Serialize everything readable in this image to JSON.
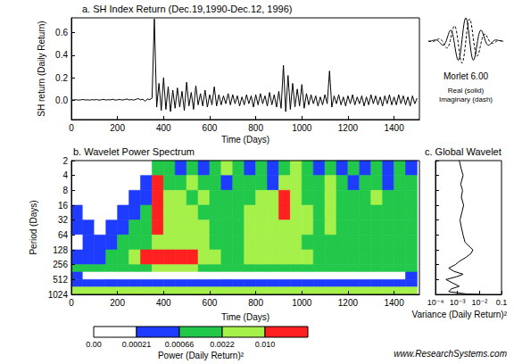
{
  "chart_data": [
    {
      "type": "line",
      "title": "a. SH Index Return (Dec.19,1990-Dec.12, 1996)",
      "x_label": "Time (Days)",
      "y_label": "SH return (Daily Return)",
      "x": [
        0,
        10,
        20,
        30,
        40,
        50,
        60,
        70,
        80,
        90,
        100,
        110,
        120,
        130,
        140,
        150,
        160,
        170,
        180,
        190,
        200,
        210,
        220,
        230,
        240,
        250,
        260,
        270,
        280,
        290,
        300,
        310,
        320,
        330,
        340,
        350,
        360,
        370,
        380,
        390,
        400,
        410,
        420,
        430,
        440,
        450,
        460,
        470,
        480,
        490,
        500,
        510,
        520,
        530,
        540,
        550,
        560,
        570,
        580,
        590,
        600,
        610,
        620,
        630,
        640,
        650,
        660,
        670,
        680,
        690,
        700,
        710,
        720,
        730,
        740,
        750,
        760,
        770,
        780,
        790,
        800,
        810,
        820,
        830,
        840,
        850,
        860,
        870,
        880,
        890,
        900,
        910,
        920,
        930,
        940,
        950,
        960,
        970,
        980,
        990,
        1000,
        1010,
        1020,
        1030,
        1040,
        1050,
        1060,
        1070,
        1080,
        1090,
        1100,
        1110,
        1120,
        1130,
        1140,
        1150,
        1160,
        1170,
        1180,
        1190,
        1200,
        1210,
        1220,
        1230,
        1240,
        1250,
        1260,
        1270,
        1280,
        1290,
        1300,
        1310,
        1320,
        1330,
        1340,
        1350,
        1360,
        1370,
        1380,
        1390,
        1400,
        1410,
        1420,
        1430,
        1440,
        1450,
        1460,
        1470,
        1480,
        1490,
        1500
      ],
      "values": [
        0.005,
        0.003,
        0.006,
        0.002,
        0.004,
        0.008,
        0.003,
        0.005,
        0.002,
        0.006,
        0.004,
        0.007,
        0.002,
        0.005,
        0.009,
        0.003,
        0.006,
        0.004,
        0.01,
        0.002,
        0.005,
        0.008,
        0.003,
        0.006,
        0.012,
        0.004,
        0.007,
        0.002,
        0.009,
        0.015,
        0.005,
        0.01,
        -0.008,
        0.012,
        0.006,
        0.02,
        0.72,
        -0.06,
        0.15,
        -0.09,
        0.2,
        -0.08,
        0.12,
        -0.1,
        0.09,
        -0.07,
        0.11,
        -0.06,
        0.08,
        -0.09,
        0.16,
        -0.05,
        0.07,
        -0.08,
        0.13,
        -0.04,
        0.06,
        -0.05,
        0.09,
        -0.06,
        0.05,
        -0.04,
        0.12,
        -0.05,
        0.05,
        -0.04,
        0.04,
        -0.03,
        0.06,
        -0.04,
        0.05,
        -0.03,
        0.04,
        -0.05,
        0.03,
        -0.04,
        0.05,
        -0.03,
        0.04,
        -0.06,
        0.05,
        -0.04,
        0.06,
        -0.03,
        0.04,
        -0.05,
        0.07,
        -0.04,
        0.05,
        -0.06,
        0.08,
        -0.07,
        0.31,
        -0.1,
        0.22,
        -0.08,
        0.15,
        -0.06,
        0.1,
        -0.05,
        0.14,
        -0.07,
        0.06,
        -0.04,
        0.05,
        -0.03,
        0.04,
        -0.05,
        0.03,
        -0.04,
        0.05,
        -0.03,
        0.26,
        -0.06,
        0.04,
        -0.03,
        0.05,
        -0.04,
        0.03,
        -0.05,
        0.04,
        -0.03,
        0.05,
        -0.04,
        0.03,
        -0.03,
        0.04,
        -0.05,
        0.03,
        -0.04,
        0.05,
        -0.03,
        0.04,
        -0.04,
        0.03,
        -0.05,
        0.04,
        -0.03,
        0.05,
        -0.04,
        0.03,
        -0.04,
        0.05,
        -0.03,
        0.04,
        -0.04,
        0.03,
        -0.05,
        0.04,
        -0.03,
        0.02
      ],
      "color": "#000000",
      "xlim": [
        0,
        1510
      ],
      "xticks": [
        0,
        200,
        400,
        600,
        800,
        1000,
        1200,
        1400
      ],
      "ylim": [
        -0.17,
        0.73
      ],
      "yticks": [
        {
          "value": 0,
          "label": "0.0"
        },
        {
          "value": 0.2,
          "label": "0.2"
        },
        {
          "value": 0.4,
          "label": "0.4"
        },
        {
          "value": 0.6,
          "label": "0.6"
        }
      ],
      "grid": false
    },
    {
      "type": "heatmap",
      "title": "b. Wavelet Power Spectrum",
      "x_label": "Time (Days)",
      "y_label": "Period (Days)",
      "x_edges": [
        0,
        50,
        100,
        150,
        200,
        250,
        300,
        350,
        400,
        450,
        500,
        550,
        600,
        650,
        700,
        750,
        800,
        850,
        900,
        950,
        1000,
        1050,
        1100,
        1150,
        1200,
        1250,
        1300,
        1350,
        1400,
        1450,
        1500
      ],
      "period_edges": [
        2,
        4,
        8,
        16,
        32,
        64,
        128,
        256,
        362,
        512,
        724,
        1024
      ],
      "power": [
        [
          0.0001,
          0.0001,
          0.0001,
          0.0001,
          0.0001,
          0.0001,
          0.0001,
          0.0012,
          0.0012,
          0.0004,
          0.0012,
          0.0004,
          0.0012,
          0.005,
          0.0012,
          0.0004,
          0.0012,
          0.0004,
          0.0012,
          0.005,
          0.0012,
          0.0004,
          0.0012,
          0.0004,
          0.0012,
          0.0004,
          0.0012,
          0.0004,
          0.0012,
          0.0004
        ],
        [
          0.0001,
          0.0001,
          0.0001,
          0.0001,
          0.0001,
          0.0001,
          0.0004,
          0.02,
          0.0012,
          0.0012,
          0.005,
          0.0012,
          0.0012,
          0.0004,
          0.0012,
          0.0012,
          0.0012,
          0.0004,
          0.005,
          0.005,
          0.0012,
          0.0012,
          0.005,
          0.0012,
          0.0004,
          0.0012,
          0.0012,
          0.0004,
          0.0012,
          0.0012
        ],
        [
          0.0001,
          0.0001,
          0.0001,
          0.0001,
          0.0001,
          0.0004,
          0.0004,
          0.02,
          0.005,
          0.005,
          0.0012,
          0.005,
          0.0012,
          0.0012,
          0.0012,
          0.0012,
          0.005,
          0.005,
          0.02,
          0.005,
          0.0012,
          0.0012,
          0.005,
          0.0012,
          0.0012,
          0.0012,
          0.005,
          0.0012,
          0.0012,
          0.0012
        ],
        [
          0.0004,
          0.0001,
          0.0001,
          0.0001,
          0.0004,
          0.0004,
          0.0012,
          0.02,
          0.005,
          0.005,
          0.005,
          0.0012,
          0.0012,
          0.0012,
          0.0012,
          0.005,
          0.005,
          0.005,
          0.02,
          0.005,
          0.005,
          0.0012,
          0.005,
          0.0012,
          0.0012,
          0.0012,
          0.0012,
          0.0012,
          0.0012,
          0.0012
        ],
        [
          0.0004,
          0.0004,
          0.0001,
          0.0004,
          0.0004,
          0.0012,
          0.0012,
          0.02,
          0.005,
          0.005,
          0.005,
          0.005,
          0.0012,
          0.0012,
          0.0012,
          0.005,
          0.005,
          0.005,
          0.005,
          0.005,
          0.005,
          0.0012,
          0.005,
          0.0012,
          0.0012,
          0.0012,
          0.0012,
          0.0012,
          0.0012,
          0.0012
        ],
        [
          0.0001,
          0.0004,
          0.0004,
          0.0004,
          0.0012,
          0.0012,
          0.0012,
          0.005,
          0.005,
          0.005,
          0.005,
          0.005,
          0.0012,
          0.0012,
          0.0012,
          0.005,
          0.005,
          0.005,
          0.005,
          0.005,
          0.0012,
          0.0012,
          0.0012,
          0.0012,
          0.0012,
          0.0012,
          0.0012,
          0.0012,
          0.0012,
          0.0012
        ],
        [
          0.0004,
          0.0004,
          0.0004,
          0.0012,
          0.0012,
          0.005,
          0.02,
          0.02,
          0.02,
          0.02,
          0.02,
          0.005,
          0.005,
          0.0012,
          0.0012,
          0.005,
          0.005,
          0.005,
          0.005,
          0.005,
          0.005,
          0.0012,
          0.0012,
          0.0012,
          0.0012,
          0.0012,
          0.0012,
          0.0012,
          0.0012,
          0.0012
        ],
        [
          0.0012,
          0.0012,
          0.0012,
          0.0012,
          0.0012,
          0.0012,
          0.0012,
          0.005,
          0.005,
          0.005,
          0.005,
          0.0012,
          0.0012,
          0.0012,
          0.0012,
          0.0012,
          0.0012,
          0.0012,
          0.0012,
          0.0012,
          0.0012,
          0.0012,
          0.0012,
          0.0012,
          0.0012,
          0.0012,
          0.0012,
          0.0012,
          0.0012,
          0.0012
        ],
        [
          0.0004,
          0.0001,
          0.0001,
          0.0001,
          0.0001,
          0.0001,
          0.0001,
          0.0001,
          0.0001,
          0.0001,
          0.0001,
          0.0001,
          0.0001,
          0.0001,
          0.0001,
          0.0001,
          0.0001,
          0.0001,
          0.0001,
          0.0001,
          0.0001,
          0.0001,
          0.0001,
          0.0001,
          0.0001,
          0.0001,
          0.0001,
          0.0001,
          0.0001,
          0.0004
        ],
        [
          0.0004,
          0.0004,
          0.0004,
          0.0004,
          0.0004,
          0.0004,
          0.0004,
          0.0004,
          0.0004,
          0.0004,
          0.0004,
          0.0004,
          0.0004,
          0.0004,
          0.0004,
          0.0004,
          0.0004,
          0.0004,
          0.0004,
          0.0004,
          0.0004,
          0.0004,
          0.0004,
          0.0004,
          0.0004,
          0.0004,
          0.0004,
          0.0004,
          0.0004,
          0.0004
        ],
        [
          0.005,
          0.005,
          0.005,
          0.005,
          0.005,
          0.005,
          0.005,
          0.005,
          0.005,
          0.005,
          0.005,
          0.005,
          0.005,
          0.005,
          0.005,
          0.005,
          0.005,
          0.005,
          0.005,
          0.005,
          0.005,
          0.005,
          0.005,
          0.005,
          0.005,
          0.005,
          0.005,
          0.005,
          0.005,
          0.005
        ]
      ],
      "xlim": [
        0,
        1510
      ],
      "xticks": [
        0,
        200,
        400,
        600,
        800,
        1000,
        1200,
        1400
      ],
      "ylim": [
        2,
        1024
      ],
      "yticks": [
        2,
        4,
        8,
        16,
        32,
        64,
        128,
        256,
        512,
        1024
      ],
      "log": "y",
      "grid": false,
      "colorbar": {
        "ticks": [
          {
            "value": 0,
            "label": "0.00"
          },
          0.00021,
          0.00066,
          0.0022,
          {
            "value": 0.01,
            "label": "0.010"
          }
        ],
        "colors": [
          "#ffffff",
          "#1e3cff",
          "#22c84a",
          "#a6f04a",
          "#ff2020"
        ],
        "label": "Power (Daily Return)²"
      }
    },
    {
      "type": "line",
      "title": "c. Global Wavelet",
      "x_label": "Variance (Daily Return)²",
      "x": [
        0.0012,
        0.0015,
        0.0018,
        0.0014,
        0.0017,
        0.0015,
        0.0019,
        0.0016,
        0.0013,
        0.0015,
        0.0018,
        0.0022,
        0.0035,
        0.005,
        0.0042,
        0.0025,
        0.0012,
        0.0008,
        0.0004,
        0.0007,
        0.0018,
        0.0009,
        0.0003,
        0.0006,
        0.0012,
        0.0005,
        0.0004,
        0.0025,
        0.0095
      ],
      "y": [
        2,
        3,
        4,
        6,
        8,
        11,
        16,
        22,
        32,
        45,
        64,
        90,
        110,
        128,
        150,
        180,
        220,
        256,
        300,
        350,
        400,
        450,
        512,
        600,
        700,
        800,
        900,
        1000,
        1024
      ],
      "color": "#000000",
      "xlim": [
        0.0001,
        0.1
      ],
      "xticks": [
        {
          "value": 0.0001,
          "label": "10⁻⁴"
        },
        {
          "value": 0.001,
          "label": "10⁻³"
        },
        {
          "value": 0.01,
          "label": "10⁻²"
        },
        0.1
      ],
      "ylim": [
        2,
        1024
      ],
      "yticks": [
        2,
        4,
        8,
        16,
        32,
        64,
        128,
        256,
        512,
        1024
      ],
      "log": true,
      "tick_labels": "x",
      "grid": false
    }
  ],
  "annotations": {
    "wavelet": "Morlet 6.00",
    "wavelet_parts": "Real (solid) Imaginary (dash)",
    "credit": "www.ResearchSystems.com"
  }
}
